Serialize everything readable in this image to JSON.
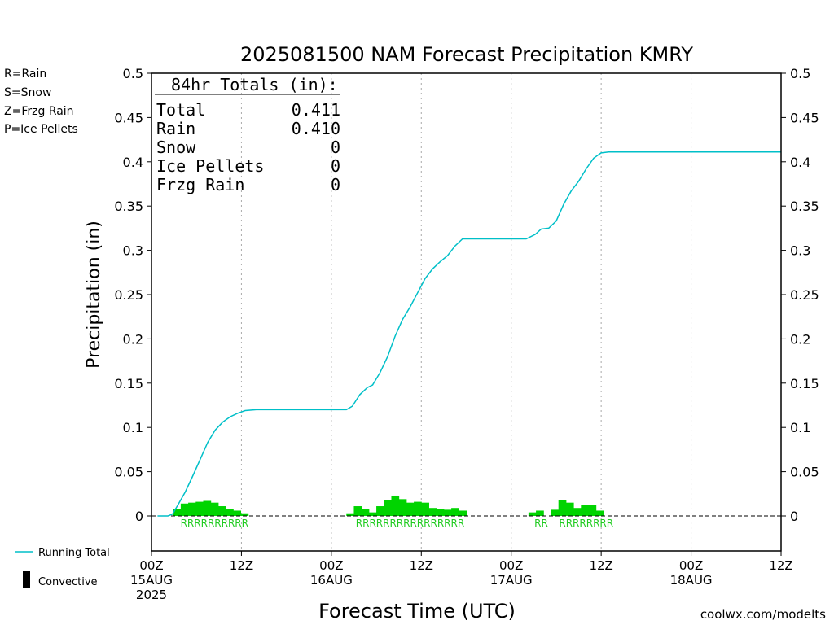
{
  "chart_data": {
    "type": "bar",
    "title": "2025081500 NAM Forecast Precipitation KMRY",
    "xlabel": "Forecast Time (UTC)",
    "ylabel": "Precipitation (in)",
    "ylim": [
      0,
      0.5
    ],
    "xlim_hours": [
      0,
      84
    ],
    "yticks": [
      {
        "v": 0,
        "label": "0"
      },
      {
        "v": 0.05,
        "label": "0.05"
      },
      {
        "v": 0.1,
        "label": "0.1"
      },
      {
        "v": 0.15,
        "label": "0.15"
      },
      {
        "v": 0.2,
        "label": "0.2"
      },
      {
        "v": 0.25,
        "label": "0.25"
      },
      {
        "v": 0.3,
        "label": "0.3"
      },
      {
        "v": 0.35,
        "label": "0.35"
      },
      {
        "v": 0.4,
        "label": "0.4"
      },
      {
        "v": 0.45,
        "label": "0.45"
      },
      {
        "v": 0.5,
        "label": "0.5"
      }
    ],
    "xticks": [
      {
        "hour": 0,
        "lines": [
          "00Z",
          "15AUG",
          "2025"
        ]
      },
      {
        "hour": 12,
        "lines": [
          "12Z"
        ]
      },
      {
        "hour": 24,
        "lines": [
          "00Z",
          "16AUG"
        ]
      },
      {
        "hour": 36,
        "lines": [
          "12Z"
        ]
      },
      {
        "hour": 48,
        "lines": [
          "00Z",
          "17AUG"
        ]
      },
      {
        "hour": 60,
        "lines": [
          "12Z"
        ]
      },
      {
        "hour": 72,
        "lines": [
          "00Z",
          "18AUG"
        ]
      },
      {
        "hour": 84,
        "lines": [
          "12Z"
        ]
      }
    ],
    "grid_hours": [
      12,
      24,
      36,
      48,
      60,
      72
    ],
    "legend_types": [
      {
        "label": "R=Rain",
        "color": "#22cc22"
      },
      {
        "label": "S=Snow",
        "color": "#3355ff"
      },
      {
        "label": "Z=Frzg Rain",
        "color": "#f08c28"
      },
      {
        "label": "P=Ice Pellets",
        "color": "#ff2db4"
      }
    ],
    "legend_series": {
      "running_total": "Running Total",
      "convective": "Convective"
    },
    "totals": {
      "heading": "84hr Totals (in):",
      "rows": [
        {
          "label": "Total",
          "value": "0.411"
        },
        {
          "label": "Rain",
          "value": "0.410"
        },
        {
          "label": "Snow",
          "value": "0"
        },
        {
          "label": "Ice Pellets",
          "value": "0"
        },
        {
          "label": "Frzg Rain",
          "value": "0"
        }
      ]
    },
    "credit": "coolwx.com/modelts",
    "colors": {
      "bars": "#00d400",
      "running_total": "#00bfc8",
      "rain_label": "#22cc22",
      "grid": "#aaaaaa",
      "credit": "#dd1a1a"
    },
    "series": [
      {
        "name": "Running Total",
        "points": [
          [
            0.8,
            0
          ],
          [
            2.2,
            0
          ],
          [
            2.8,
            0.002
          ],
          [
            3.5,
            0.012
          ],
          [
            4.5,
            0.027
          ],
          [
            5.5,
            0.045
          ],
          [
            6.5,
            0.064
          ],
          [
            7.5,
            0.083
          ],
          [
            8.5,
            0.097
          ],
          [
            9.5,
            0.106
          ],
          [
            10.5,
            0.112
          ],
          [
            11.5,
            0.116
          ],
          [
            12.5,
            0.119
          ],
          [
            14,
            0.12
          ],
          [
            24,
            0.12
          ],
          [
            26,
            0.12
          ],
          [
            26.8,
            0.124
          ],
          [
            27.8,
            0.137
          ],
          [
            28.8,
            0.145
          ],
          [
            29.5,
            0.148
          ],
          [
            30.5,
            0.162
          ],
          [
            31.5,
            0.18
          ],
          [
            32.5,
            0.203
          ],
          [
            33.5,
            0.222
          ],
          [
            34.5,
            0.236
          ],
          [
            35.5,
            0.252
          ],
          [
            36.5,
            0.268
          ],
          [
            37.5,
            0.279
          ],
          [
            38.5,
            0.287
          ],
          [
            39.5,
            0.294
          ],
          [
            40.5,
            0.305
          ],
          [
            41.5,
            0.313
          ],
          [
            43,
            0.313
          ],
          [
            47,
            0.313
          ],
          [
            50,
            0.313
          ],
          [
            51.2,
            0.318
          ],
          [
            52,
            0.324
          ],
          [
            53,
            0.325
          ],
          [
            54,
            0.333
          ],
          [
            55,
            0.352
          ],
          [
            56,
            0.367
          ],
          [
            57,
            0.378
          ],
          [
            58,
            0.392
          ],
          [
            59,
            0.404
          ],
          [
            60,
            0.41
          ],
          [
            61,
            0.411
          ],
          [
            84,
            0.411
          ]
        ]
      },
      {
        "name": "Convective",
        "points": []
      }
    ],
    "bars": [
      {
        "x0": 2.9,
        "x1": 3.9,
        "value": 0.008
      },
      {
        "x0": 3.9,
        "x1": 4.9,
        "value": 0.014
      },
      {
        "x0": 4.9,
        "x1": 5.9,
        "value": 0.015
      },
      {
        "x0": 5.9,
        "x1": 6.9,
        "value": 0.016
      },
      {
        "x0": 6.9,
        "x1": 7.9,
        "value": 0.017
      },
      {
        "x0": 7.9,
        "x1": 8.9,
        "value": 0.015
      },
      {
        "x0": 8.9,
        "x1": 9.9,
        "value": 0.011
      },
      {
        "x0": 9.9,
        "x1": 10.9,
        "value": 0.008
      },
      {
        "x0": 10.9,
        "x1": 11.9,
        "value": 0.006
      },
      {
        "x0": 11.9,
        "x1": 12.9,
        "value": 0.003
      },
      {
        "x0": 26.0,
        "x1": 27.0,
        "value": 0.003
      },
      {
        "x0": 27.0,
        "x1": 28.0,
        "value": 0.011
      },
      {
        "x0": 28.0,
        "x1": 29.0,
        "value": 0.008
      },
      {
        "x0": 29.0,
        "x1": 30.0,
        "value": 0.004
      },
      {
        "x0": 30.0,
        "x1": 31.0,
        "value": 0.011
      },
      {
        "x0": 31.0,
        "x1": 32.0,
        "value": 0.018
      },
      {
        "x0": 32.0,
        "x1": 33.0,
        "value": 0.023
      },
      {
        "x0": 33.0,
        "x1": 34.0,
        "value": 0.019
      },
      {
        "x0": 34.0,
        "x1": 35.0,
        "value": 0.015
      },
      {
        "x0": 35.0,
        "x1": 36.0,
        "value": 0.016
      },
      {
        "x0": 36.0,
        "x1": 37.0,
        "value": 0.015
      },
      {
        "x0": 37.0,
        "x1": 38.0,
        "value": 0.009
      },
      {
        "x0": 38.0,
        "x1": 39.0,
        "value": 0.008
      },
      {
        "x0": 39.0,
        "x1": 40.0,
        "value": 0.007
      },
      {
        "x0": 40.0,
        "x1": 41.0,
        "value": 0.009
      },
      {
        "x0": 41.0,
        "x1": 42.0,
        "value": 0.006
      },
      {
        "x0": 50.3,
        "x1": 51.3,
        "value": 0.004
      },
      {
        "x0": 51.3,
        "x1": 52.3,
        "value": 0.006
      },
      {
        "x0": 53.3,
        "x1": 54.3,
        "value": 0.007
      },
      {
        "x0": 54.3,
        "x1": 55.3,
        "value": 0.018
      },
      {
        "x0": 55.3,
        "x1": 56.3,
        "value": 0.015
      },
      {
        "x0": 56.3,
        "x1": 57.3,
        "value": 0.009
      },
      {
        "x0": 57.3,
        "x1": 58.3,
        "value": 0.012
      },
      {
        "x0": 58.3,
        "x1": 59.3,
        "value": 0.012
      },
      {
        "x0": 59.3,
        "x1": 60.3,
        "value": 0.006
      }
    ],
    "type_labels": [
      {
        "hour": 8.4,
        "text": "RRRRRRRRRR"
      },
      {
        "hour": 34.5,
        "text": "RRRRRRRRRRRRRRRR"
      },
      {
        "hour": 52.0,
        "text": "RR"
      },
      {
        "hour": 58.0,
        "text": "RRRRRRRR"
      }
    ]
  }
}
